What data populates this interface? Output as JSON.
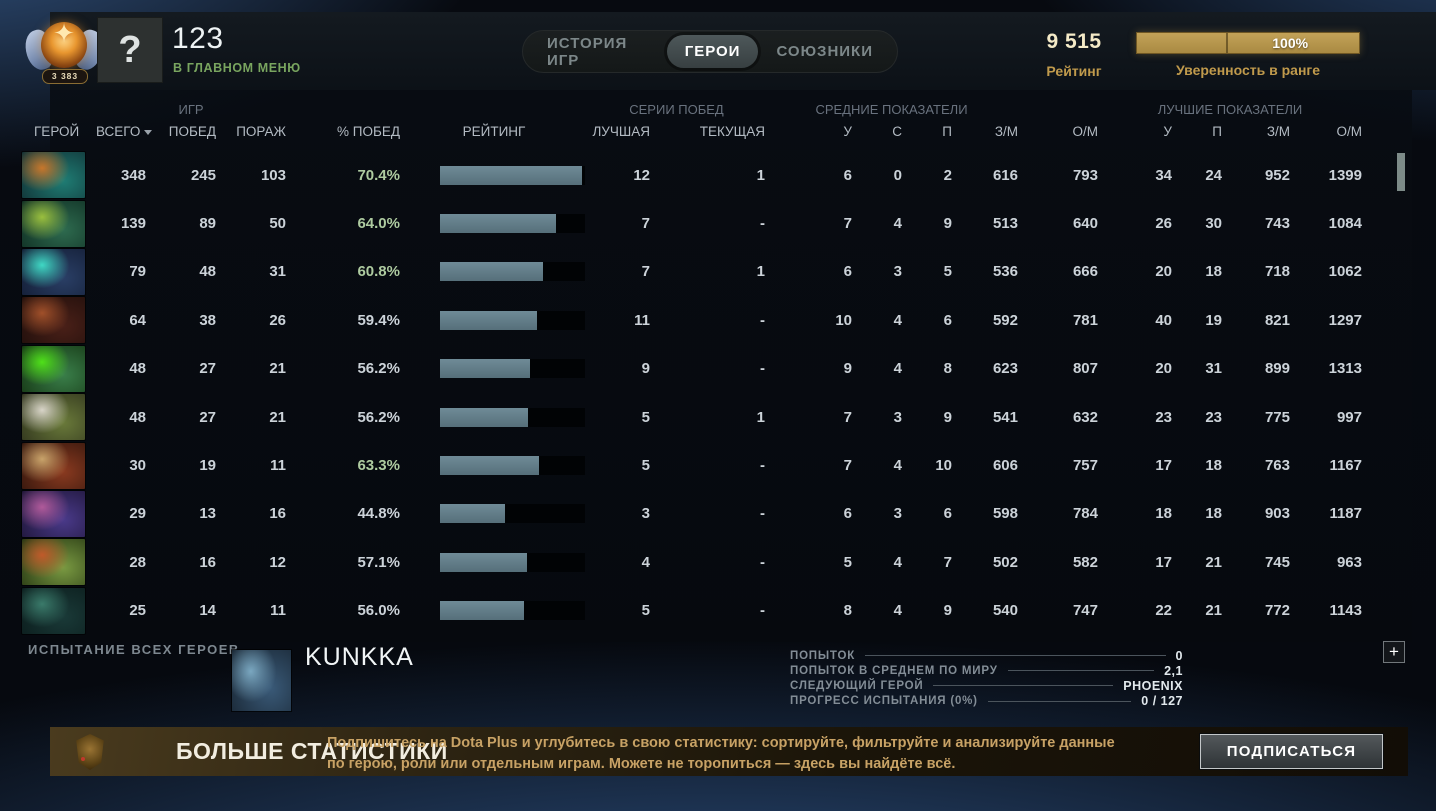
{
  "header": {
    "medal": {
      "label": "3 383"
    },
    "avatar_glyph": "?",
    "player_name": "123",
    "status": "В ГЛАВНОМ МЕНЮ",
    "tabs": [
      {
        "key": "match-history",
        "label": "ИСТОРИЯ ИГР",
        "active": false
      },
      {
        "key": "heroes",
        "label": "ГЕРОИ",
        "active": true
      },
      {
        "key": "allies",
        "label": "СОЮЗНИКИ",
        "active": false
      }
    ],
    "rating_value": "9 515",
    "rating_label": "Рейтинг",
    "confidence_pct": "100%",
    "confidence_label": "Уверенность в ранге"
  },
  "table": {
    "group_headers": {
      "games": "ИГР",
      "streaks": "СЕРИИ ПОБЕД",
      "avg": "СРЕДНИЕ ПОКАЗАТЕЛИ",
      "best": "ЛУЧШИЕ ПОКАЗАТЕЛИ"
    },
    "columns": {
      "hero": "ГЕРОЙ",
      "total": "ВСЕГО",
      "wins": "ПОБЕД",
      "losses": "ПОРАЖ",
      "win_pct": "% ПОБЕД",
      "rating": "РЕЙТИНГ",
      "best_streak": "ЛУЧШАЯ",
      "current_streak": "ТЕКУЩАЯ",
      "avg_k": "У",
      "avg_d": "С",
      "avg_a": "П",
      "avg_gpm": "З/М",
      "avg_xpm": "О/М",
      "best_k": "У",
      "best_a": "П",
      "best_gpm": "З/М",
      "best_xpm": "О/М"
    },
    "rows": [
      {
        "hero": "meepo",
        "icon_colors": [
          "#c7762b",
          "#1f7d74",
          "#102b30"
        ],
        "total": "348",
        "wins": "245",
        "losses": "103",
        "win_pct": "70.4%",
        "bar_pct": 98,
        "best_streak": "12",
        "current_streak": "1",
        "k": "6",
        "d": "0",
        "a": "2",
        "gpm": "616",
        "xpm": "793",
        "bk": "34",
        "ba": "24",
        "bgpm": "952",
        "bxpm": "1399"
      },
      {
        "hero": "viper",
        "icon_colors": [
          "#9abf3e",
          "#2e6b4f",
          "#0d2a20"
        ],
        "total": "139",
        "wins": "89",
        "losses": "50",
        "win_pct": "64.0%",
        "bar_pct": 80,
        "best_streak": "7",
        "current_streak": "-",
        "k": "7",
        "d": "4",
        "a": "9",
        "gpm": "513",
        "xpm": "640",
        "bk": "26",
        "ba": "30",
        "bgpm": "743",
        "bxpm": "1084"
      },
      {
        "hero": "outworld-destroyer",
        "icon_colors": [
          "#3fd8c4",
          "#2a3f66",
          "#111a30"
        ],
        "total": "79",
        "wins": "48",
        "losses": "31",
        "win_pct": "60.8%",
        "bar_pct": 71,
        "best_streak": "7",
        "current_streak": "1",
        "k": "6",
        "d": "3",
        "a": "5",
        "gpm": "536",
        "xpm": "666",
        "bk": "20",
        "ba": "18",
        "bgpm": "718",
        "bxpm": "1062"
      },
      {
        "hero": "ursa",
        "icon_colors": [
          "#a0502a",
          "#4a2018",
          "#1c0d0a"
        ],
        "total": "64",
        "wins": "38",
        "losses": "26",
        "win_pct": "59.4%",
        "bar_pct": 67,
        "best_streak": "11",
        "current_streak": "-",
        "k": "10",
        "d": "4",
        "a": "6",
        "gpm": "592",
        "xpm": "781",
        "bk": "40",
        "ba": "19",
        "bgpm": "821",
        "bxpm": "1297"
      },
      {
        "hero": "rubick",
        "icon_colors": [
          "#4fe019",
          "#3a7f4a",
          "#12300f"
        ],
        "total": "48",
        "wins": "27",
        "losses": "21",
        "win_pct": "56.2%",
        "bar_pct": 62,
        "best_streak": "9",
        "current_streak": "-",
        "k": "9",
        "d": "4",
        "a": "8",
        "gpm": "623",
        "xpm": "807",
        "bk": "20",
        "ba": "31",
        "bgpm": "899",
        "bxpm": "1313"
      },
      {
        "hero": "sniper",
        "icon_colors": [
          "#d8d4c8",
          "#6a7a3a",
          "#2a2d1a"
        ],
        "total": "48",
        "wins": "27",
        "losses": "21",
        "win_pct": "56.2%",
        "bar_pct": 61,
        "best_streak": "5",
        "current_streak": "1",
        "k": "7",
        "d": "3",
        "a": "9",
        "gpm": "541",
        "xpm": "632",
        "bk": "23",
        "ba": "23",
        "bgpm": "775",
        "bxpm": "997"
      },
      {
        "hero": "lifestealer",
        "icon_colors": [
          "#c8a36a",
          "#8a3a20",
          "#2a120a"
        ],
        "total": "30",
        "wins": "19",
        "losses": "11",
        "win_pct": "63.3%",
        "bar_pct": 68,
        "best_streak": "5",
        "current_streak": "-",
        "k": "7",
        "d": "4",
        "a": "10",
        "gpm": "606",
        "xpm": "757",
        "bk": "17",
        "ba": "18",
        "bgpm": "763",
        "bxpm": "1167"
      },
      {
        "hero": "anti-mage",
        "icon_colors": [
          "#b05a9a",
          "#4a3a8a",
          "#1a1230"
        ],
        "total": "29",
        "wins": "13",
        "losses": "16",
        "win_pct": "44.8%",
        "bar_pct": 45,
        "best_streak": "3",
        "current_streak": "-",
        "k": "6",
        "d": "3",
        "a": "6",
        "gpm": "598",
        "xpm": "784",
        "bk": "18",
        "ba": "18",
        "bgpm": "903",
        "bxpm": "1187"
      },
      {
        "hero": "bounty-hunter",
        "icon_colors": [
          "#c05a2a",
          "#7a9a42",
          "#20300f"
        ],
        "total": "28",
        "wins": "16",
        "losses": "12",
        "win_pct": "57.1%",
        "bar_pct": 60,
        "best_streak": "4",
        "current_streak": "-",
        "k": "5",
        "d": "4",
        "a": "7",
        "gpm": "502",
        "xpm": "582",
        "bk": "17",
        "ba": "21",
        "bgpm": "745",
        "bxpm": "963"
      },
      {
        "hero": "slark",
        "icon_colors": [
          "#3a7a6a",
          "#1a3a38",
          "#0a1a1a"
        ],
        "total": "25",
        "wins": "14",
        "losses": "11",
        "win_pct": "56.0%",
        "bar_pct": 58,
        "best_streak": "5",
        "current_streak": "-",
        "k": "8",
        "d": "4",
        "a": "9",
        "gpm": "540",
        "xpm": "747",
        "bk": "22",
        "ba": "21",
        "bgpm": "772",
        "bxpm": "1143"
      }
    ]
  },
  "footer": {
    "challenge_label": "ИСПЫТАНИЕ ВСЕХ ГЕРОЕВ",
    "hero_name": "KUNKKA",
    "hero_icon_colors": [
      "#7aa7c0",
      "#3a5a78",
      "#16222e"
    ],
    "stats": [
      {
        "label": "ПОПЫТОК",
        "value": "0"
      },
      {
        "label": "ПОПЫТОК В СРЕДНЕМ ПО МИРУ",
        "value": "2,1"
      },
      {
        "label": "СЛЕДУЮЩИЙ ГЕРОЙ",
        "value": "PHOENIX"
      },
      {
        "label": "ПРОГРЕСС ИСПЫТАНИЯ (0%)",
        "value": "0 / 127"
      }
    ],
    "add_button": "+"
  },
  "promo": {
    "title": "БОЛЬШЕ СТАТИСТИКИ",
    "text": "Подпишитесь на Dota Plus и углубитесь в свою статистику: сортируйте, фильтруйте и анализируйте данные по герою, роли или отдельным играм. Можете не торопиться — здесь вы найдёте всё.",
    "button": "ПОДПИСАТЬСЯ"
  },
  "colors": {
    "accent_gold": "#c09a4c",
    "win_green": "#aecba0",
    "bar_fill": "#617d89",
    "status_green": "#79a55f"
  }
}
